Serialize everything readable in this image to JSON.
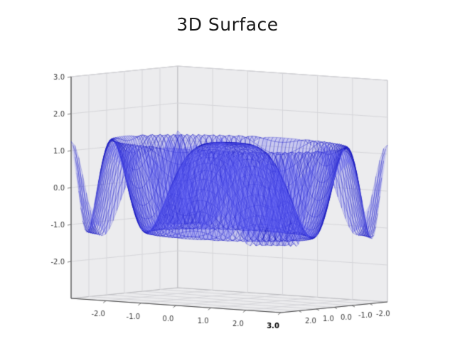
{
  "chart_data": {
    "type": "surface",
    "title": "3D Surface",
    "description": "Radially symmetric cosine ripple surface rendered as a translucent blue triangulated mesh in a matplotlib-style 3D axes box",
    "formula": "z = 1.25 * cos(0.7 * (x^2 + y^2))",
    "amplitude": 1.25,
    "frequency": 0.7,
    "x_range": [
      -3,
      3
    ],
    "y_range": [
      -3,
      3
    ],
    "z_range": [
      -3,
      3
    ],
    "x_ticks": [
      -2,
      -1,
      0,
      1,
      2,
      3
    ],
    "y_ticks": [
      2,
      1,
      0,
      -1,
      -2
    ],
    "z_ticks": [
      -2,
      -1,
      0,
      1,
      2,
      3
    ],
    "emphasized_x_tick": 3,
    "tick_label_format": "one_decimal",
    "surface_fill_color": "rgba(45,45,245,0.10)",
    "surface_edge_color": "rgba(25,25,190,0.50)",
    "overlay_fill_color": "rgba(90,90,250,0.13)",
    "overlay_edge_color": "rgba(120,120,250,0.20)",
    "pane_color": "#ececee",
    "grid_color": "#d6d6da",
    "pane_border_color": "#bcbcc0",
    "axis_line_color": "#4a4a4a",
    "tick_mark_color": "#555555",
    "tick_text_color": "#3a3a3a",
    "background_color": "#ffffff",
    "fine_grid_n": 55,
    "coarse_grid_n": 12,
    "view": {
      "elev_deg": 30,
      "azim_deg": -60,
      "projection": "orthographic"
    },
    "grid": true
  }
}
